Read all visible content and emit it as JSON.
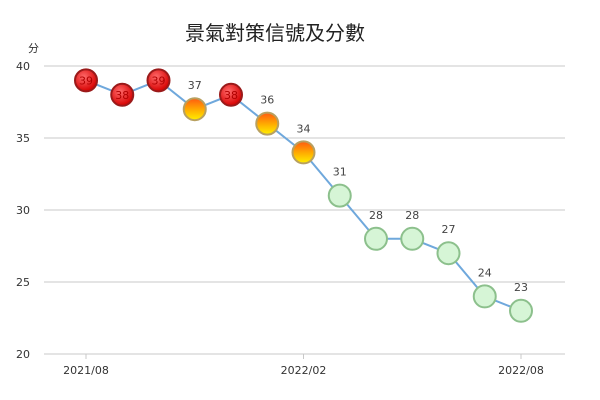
{
  "chart_data": {
    "type": "line",
    "title": "景氣對策信號及分數",
    "ylabel": "分",
    "ylim": [
      20,
      40
    ],
    "yticks": [
      20,
      25,
      30,
      35,
      40
    ],
    "grid": true,
    "x": [
      "2021/08",
      "2021/09",
      "2021/10",
      "2021/11",
      "2021/12",
      "2022/01",
      "2022/02",
      "2022/03",
      "2022/04",
      "2022/05",
      "2022/06",
      "2022/07",
      "2022/08"
    ],
    "xtick_labels": [
      "2021/08",
      "2022/02",
      "2022/08"
    ],
    "series": [
      {
        "values": [
          39,
          38,
          39,
          37,
          38,
          36,
          34,
          31,
          28,
          28,
          27,
          24,
          23
        ],
        "signals": [
          "red",
          "red",
          "red",
          "yellow-red",
          "red",
          "yellow-red",
          "yellow-red",
          "green",
          "green",
          "green",
          "green",
          "green",
          "green"
        ]
      }
    ],
    "colors": {
      "line": "#6fa8dc",
      "red_light": "#ff4a4a",
      "red_dark": "#c40000",
      "yellow_top": "#ff6a1a",
      "yellow_bottom": "#ffe600",
      "green_fill": "#d6f5d6",
      "green_stroke": "#8cc08c",
      "grid": "#c8c8c8"
    }
  }
}
